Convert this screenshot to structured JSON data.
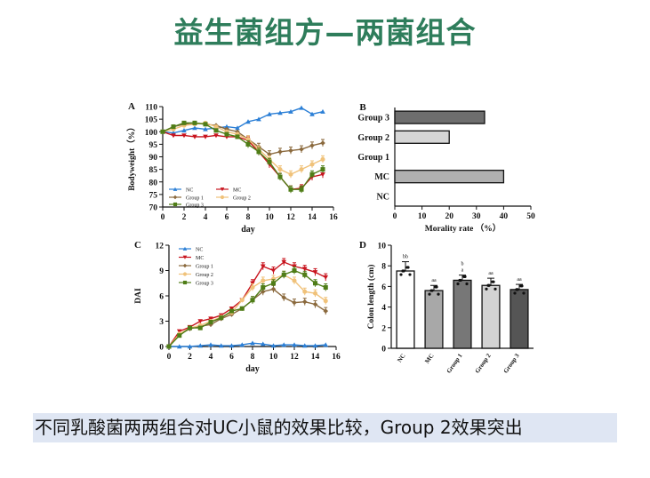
{
  "title": "益生菌组方—两菌组合",
  "caption": "不同乳酸菌两两组合对UC小鼠的效果比较，Group 2效果突出",
  "colors": {
    "NC": "#2b7fd6",
    "MC": "#c8141e",
    "Group 1": "#8b6a3e",
    "Group 2": "#f0c27a",
    "Group 3": "#4f7d17"
  },
  "chart_data": [
    {
      "panel": "A",
      "type": "line",
      "xlabel": "day",
      "ylabel": "Bodyweight（%）",
      "xlim": [
        0,
        16
      ],
      "ylim": [
        70,
        110
      ],
      "xticks": [
        0,
        2,
        4,
        6,
        8,
        10,
        12,
        14,
        16
      ],
      "yticks": [
        70,
        75,
        80,
        85,
        90,
        95,
        100,
        105,
        110
      ],
      "x": [
        0,
        1,
        2,
        3,
        4,
        5,
        6,
        7,
        8,
        9,
        10,
        11,
        12,
        13,
        14,
        15
      ],
      "series": [
        {
          "name": "NC",
          "marker": "triangle",
          "values": [
            100,
            99.5,
            100.5,
            101.5,
            101,
            101.5,
            102,
            101.5,
            104,
            105,
            107,
            107.5,
            108,
            109.5,
            107,
            108
          ]
        },
        {
          "name": "MC",
          "marker": "triangle-down",
          "values": [
            100,
            98.5,
            98.5,
            98,
            98,
            98.5,
            98,
            98,
            96.5,
            92,
            87,
            82,
            77,
            77.5,
            82,
            83
          ]
        },
        {
          "name": "Group 1",
          "marker": "diamond",
          "values": [
            100,
            102,
            103,
            103.5,
            103,
            102.5,
            101,
            100,
            97,
            94,
            91,
            92,
            92.5,
            93,
            94.5,
            95.5
          ]
        },
        {
          "name": "Group 2",
          "marker": "circle",
          "values": [
            100,
            101,
            102.5,
            103,
            103.5,
            102,
            100,
            99,
            97,
            93,
            89,
            85,
            83,
            85,
            87,
            89
          ]
        },
        {
          "name": "Group 3",
          "marker": "square",
          "values": [
            100,
            102,
            103.5,
            103.5,
            103,
            100.5,
            99,
            98,
            95,
            92,
            88,
            82,
            77,
            77,
            83,
            85
          ]
        }
      ],
      "legend": [
        [
          "NC",
          "MC"
        ],
        [
          "Group 1",
          "Group 2"
        ],
        [
          "Group 3"
        ]
      ]
    },
    {
      "panel": "B",
      "type": "bar",
      "orientation": "horizontal",
      "xlabel": "Morality rate （%）",
      "xlim": [
        0,
        50
      ],
      "xticks": [
        0,
        10,
        20,
        30,
        40,
        50
      ],
      "categories": [
        "Group 3",
        "Group 2",
        "Group 1",
        "MC",
        "NC"
      ],
      "values": [
        33,
        20,
        0,
        40,
        0
      ],
      "fills": [
        "#6e6e6e",
        "#d6d6d6",
        "#ffffff",
        "#b0b0b0",
        "#ffffff"
      ]
    },
    {
      "panel": "C",
      "type": "line",
      "xlabel": "day",
      "ylabel": "DAI",
      "xlim": [
        0,
        16
      ],
      "ylim": [
        0,
        12
      ],
      "xticks": [
        0,
        2,
        4,
        6,
        8,
        10,
        12,
        14,
        16
      ],
      "yticks": [
        0,
        3,
        6,
        9,
        12
      ],
      "x": [
        0,
        1,
        2,
        3,
        4,
        5,
        6,
        7,
        8,
        9,
        10,
        11,
        12,
        13,
        14,
        15
      ],
      "series": [
        {
          "name": "NC",
          "marker": "triangle",
          "values": [
            0,
            0,
            0,
            0.1,
            0.2,
            0.1,
            0.1,
            0.2,
            0.4,
            0.3,
            0.1,
            0.2,
            0.2,
            0.1,
            0.1,
            0.2
          ]
        },
        {
          "name": "MC",
          "marker": "triangle-down",
          "values": [
            0,
            1.8,
            2.3,
            3,
            3.3,
            3.7,
            4.5,
            5.5,
            7.5,
            9.5,
            9,
            10,
            9.5,
            9.2,
            8.8,
            8.2
          ]
        },
        {
          "name": "Group 1",
          "marker": "diamond",
          "values": [
            0,
            1.4,
            2.1,
            2.4,
            2.6,
            3.3,
            3.8,
            4.5,
            5.5,
            6.5,
            6.8,
            5.8,
            5.2,
            5.3,
            5,
            4.2
          ]
        },
        {
          "name": "Group 2",
          "marker": "circle",
          "values": [
            0,
            1.5,
            2.2,
            2.5,
            3,
            3.5,
            4,
            5.5,
            7,
            7.8,
            8,
            8.5,
            7.8,
            6.5,
            6.3,
            5.4
          ]
        },
        {
          "name": "Group 3",
          "marker": "square",
          "values": [
            0,
            1.3,
            2.2,
            2.2,
            2.9,
            3.4,
            4.2,
            4.5,
            5.5,
            7,
            7.5,
            8.5,
            9,
            8.5,
            7.5,
            7
          ]
        }
      ],
      "legend": [
        "NC",
        "MC",
        "Group 1",
        "Group 2",
        "Group 3"
      ]
    },
    {
      "panel": "D",
      "type": "bar",
      "ylabel": "Colon length (cm)",
      "ylim": [
        0,
        10
      ],
      "yticks": [
        0,
        2,
        4,
        6,
        8,
        10
      ],
      "categories": [
        "NC",
        "MC",
        "Group 1",
        "Group 2",
        "Group 3"
      ],
      "values": [
        7.5,
        5.6,
        6.6,
        6.1,
        5.7
      ],
      "errors": [
        0.9,
        0.5,
        0.5,
        0.7,
        0.5
      ],
      "fills": [
        "#ffffff",
        "#a8a8a8",
        "#777777",
        "#d3d3d3",
        "#555555"
      ],
      "significance": [
        "bb",
        "aa",
        "b\na",
        "aa",
        "aa"
      ]
    }
  ]
}
